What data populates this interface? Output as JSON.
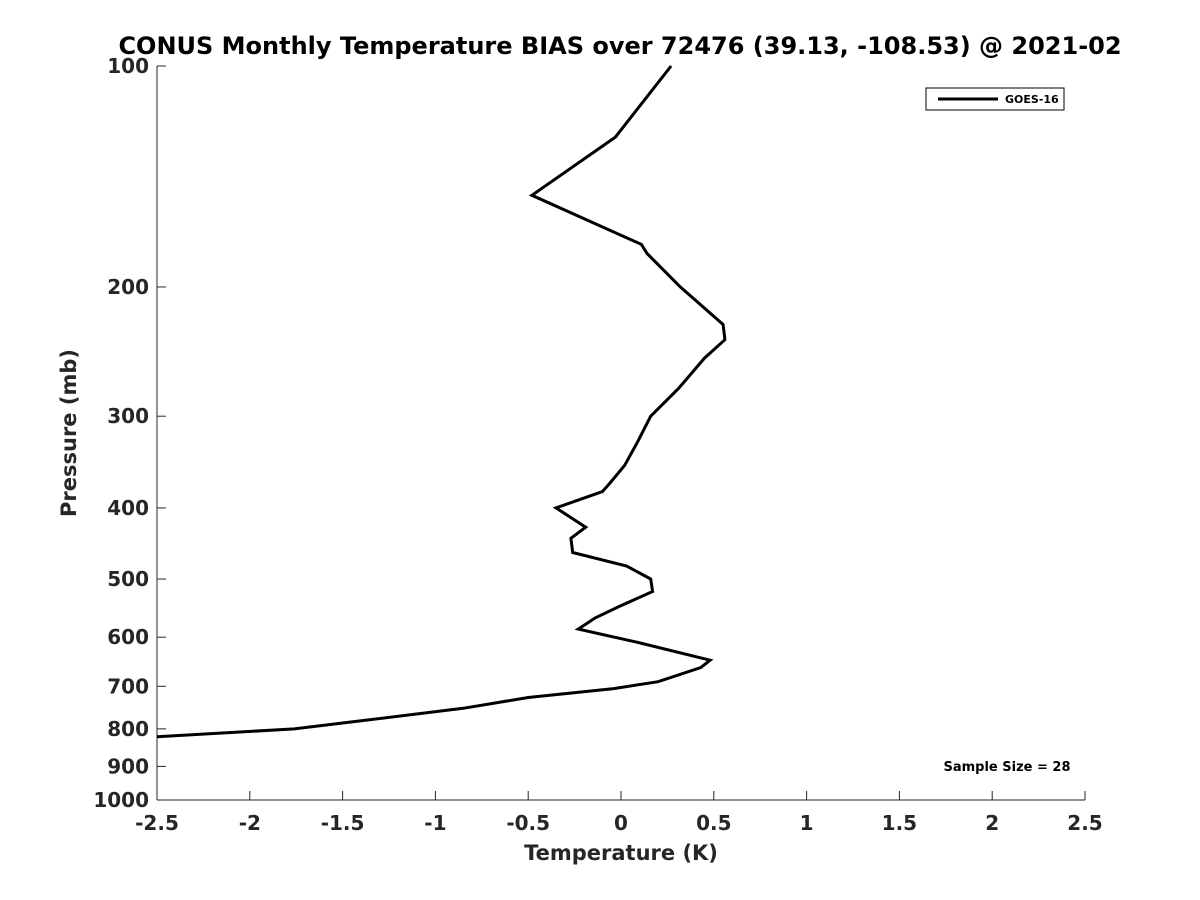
{
  "chart_data": {
    "type": "line",
    "title": "CONUS Monthly Temperature BIAS over 72476 (39.13, -108.53) @ 2021-02",
    "xlabel": "Temperature (K)",
    "ylabel": "Pressure (mb)",
    "xlim": [
      -2.5,
      2.5
    ],
    "ylim": [
      100,
      1000
    ],
    "y_scale": "log",
    "y_reversed": true,
    "grid": false,
    "legend_position": "top-right",
    "x_ticks": [
      -2.5,
      -2,
      -1.5,
      -1,
      -0.5,
      0,
      0.5,
      1,
      1.5,
      2,
      2.5
    ],
    "x_tick_labels": [
      "-2.5",
      "-2",
      "-1.5",
      "-1",
      "-0.5",
      "0",
      "0.5",
      "1",
      "1.5",
      "2",
      "2.5"
    ],
    "y_ticks": [
      100,
      200,
      300,
      400,
      500,
      600,
      700,
      800,
      900,
      1000
    ],
    "y_tick_labels": [
      "100",
      "200",
      "300",
      "400",
      "500",
      "600",
      "700",
      "800",
      "900",
      "1000"
    ],
    "series": [
      {
        "name": "GOES-16",
        "color": "#000000",
        "points": [
          {
            "t": 0.27,
            "p": 100
          },
          {
            "t": -0.03,
            "p": 125
          },
          {
            "t": -0.48,
            "p": 150
          },
          {
            "t": 0.11,
            "p": 175
          },
          {
            "t": 0.14,
            "p": 180
          },
          {
            "t": 0.32,
            "p": 200
          },
          {
            "t": 0.55,
            "p": 225
          },
          {
            "t": 0.56,
            "p": 236
          },
          {
            "t": 0.45,
            "p": 250
          },
          {
            "t": 0.31,
            "p": 275
          },
          {
            "t": 0.16,
            "p": 300
          },
          {
            "t": 0.09,
            "p": 325
          },
          {
            "t": 0.02,
            "p": 350
          },
          {
            "t": -0.06,
            "p": 370
          },
          {
            "t": -0.1,
            "p": 380
          },
          {
            "t": -0.35,
            "p": 400
          },
          {
            "t": -0.19,
            "p": 425
          },
          {
            "t": -0.27,
            "p": 440
          },
          {
            "t": -0.26,
            "p": 460
          },
          {
            "t": 0.03,
            "p": 480
          },
          {
            "t": 0.16,
            "p": 500
          },
          {
            "t": 0.17,
            "p": 520
          },
          {
            "t": -0.01,
            "p": 545
          },
          {
            "t": -0.14,
            "p": 565
          },
          {
            "t": -0.23,
            "p": 585
          },
          {
            "t": 0.09,
            "p": 610
          },
          {
            "t": 0.48,
            "p": 645
          },
          {
            "t": 0.43,
            "p": 660
          },
          {
            "t": 0.2,
            "p": 690
          },
          {
            "t": -0.04,
            "p": 705
          },
          {
            "t": -0.5,
            "p": 725
          },
          {
            "t": -0.85,
            "p": 750
          },
          {
            "t": -1.4,
            "p": 780
          },
          {
            "t": -1.76,
            "p": 800
          },
          {
            "t": -2.5,
            "p": 820
          }
        ]
      }
    ],
    "legend": {
      "entries": [
        "GOES-16"
      ]
    },
    "annotations": [
      {
        "text": "Sample Size = 28"
      }
    ]
  }
}
